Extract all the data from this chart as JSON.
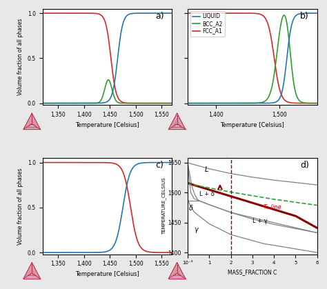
{
  "fig_size": [
    4.74,
    4.19
  ],
  "dpi": 100,
  "background": "#e8e8e8",
  "panel_a": {
    "label": "a)",
    "xlim": [
      1320,
      1570
    ],
    "ylim": [
      -0.02,
      1.05
    ],
    "xticks": [
      1350,
      1400,
      1450,
      1500,
      1550
    ],
    "yticks": [
      0.0,
      0.5,
      1.0
    ],
    "xlabel": "Temperature [Celsius]",
    "ylabel": "Volume fraction of all phases",
    "liquid_color": "#1f77b4",
    "bcc_color": "#2ca02c",
    "fcc_color": "#d62728",
    "fcc_mid": 1452,
    "fcc_steep": 5,
    "liq_mid": 1465,
    "liq_steep": 5,
    "bcc_peak": 1447,
    "bcc_sigma": 7,
    "bcc_amp": 0.26
  },
  "panel_b": {
    "label": "b)",
    "xlim": [
      1355,
      1560
    ],
    "ylim": [
      -0.02,
      1.05
    ],
    "xticks": [
      1400,
      1500
    ],
    "yticks": [
      0.0,
      0.5,
      1.0
    ],
    "xlabel": "Temperature [Celsius]",
    "ylabel": "Volume fraction of all phases",
    "liquid_color": "#1f77b4",
    "bcc_color": "#2ca02c",
    "fcc_color": "#d62728",
    "fcc_mid": 1492,
    "fcc_steep": 5,
    "bcc_mid": 1497,
    "bcc_steep": 5,
    "liq_mid": 1512,
    "liq_steep": 4,
    "legend_labels": [
      "LIQUID",
      "BCC_A2",
      "FCC_A1"
    ]
  },
  "panel_c": {
    "label": "c)",
    "xlim": [
      1320,
      1570
    ],
    "ylim": [
      -0.02,
      1.05
    ],
    "xticks": [
      1350,
      1400,
      1450,
      1500,
      1550
    ],
    "yticks": [
      0.0,
      0.5,
      1.0
    ],
    "xlabel": "Temperature [Celsius]",
    "ylabel": "Volume fraction of all phases",
    "liquid_color": "#1f77b4",
    "fcc_color": "#d62728",
    "fcc_mid": 1490,
    "fcc_steep": 7,
    "liq_mid": 1475,
    "liq_steep": 7
  },
  "panel_d": {
    "label": "d)",
    "xlim": [
      0,
      6
    ],
    "ylim": [
      1397,
      1558
    ],
    "xlabel": "MASS_FRACTION C",
    "ylabel": "TEMPERATURE_CELSIUS",
    "yticks": [
      1400,
      1450,
      1500,
      1550
    ],
    "xticks": [
      0,
      1,
      2,
      3,
      4,
      5,
      6
    ],
    "x_label_zero": "10⁻³",
    "T0_line_color": "#8b0000",
    "arrow_color": "#8b0000",
    "dashed_line_color": "#2ca02c",
    "vline_color": "#8b0000"
  }
}
